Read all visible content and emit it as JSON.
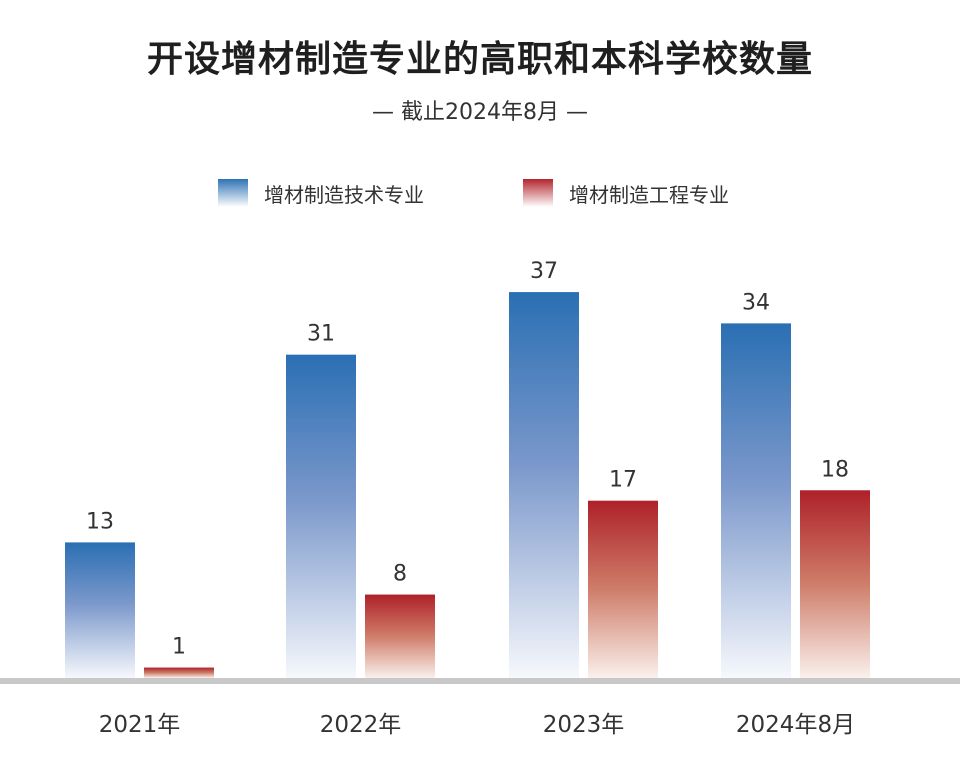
{
  "chart_data": {
    "type": "bar",
    "title": "开设增材制造专业的高职和本科学校数量",
    "subtitle": "— 截止2024年8月 —",
    "categories": [
      "2021年",
      "2022年",
      "2023年",
      "2024年8月"
    ],
    "series": [
      {
        "name": "增材制造技术专业",
        "values": [
          13,
          31,
          37,
          34
        ],
        "color": "#2f72b5"
      },
      {
        "name": "增材制造工程专业",
        "values": [
          1,
          8,
          17,
          18
        ],
        "color": "#b3262e"
      }
    ],
    "ylim": [
      0,
      37
    ],
    "grid": false,
    "legend": "top-center"
  }
}
